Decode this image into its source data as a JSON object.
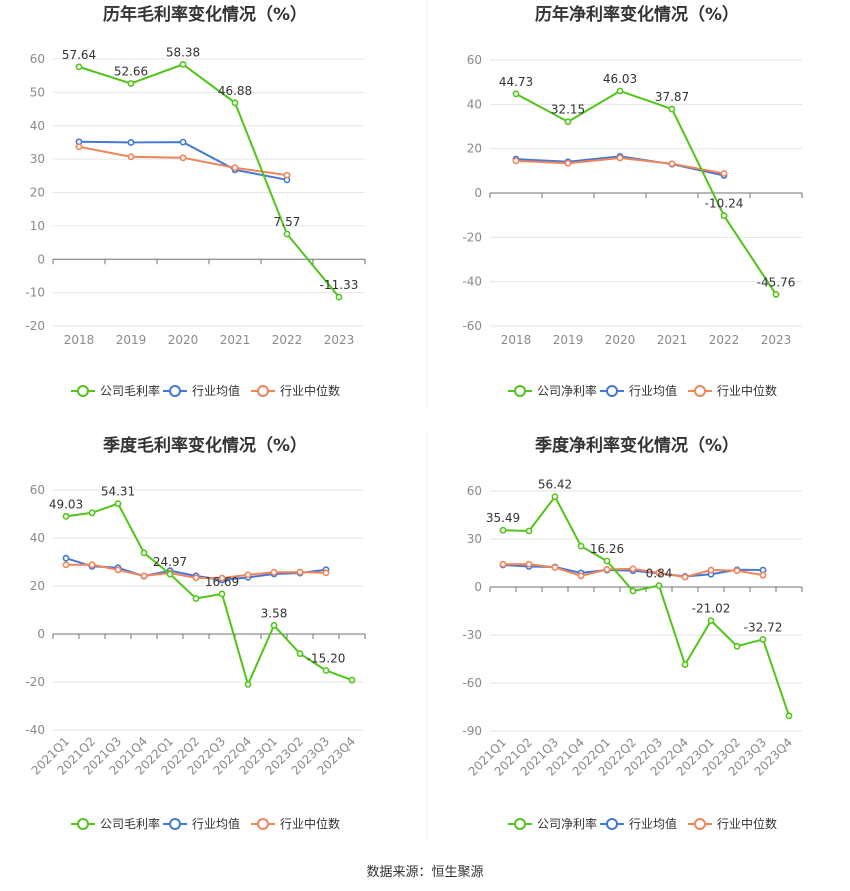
{
  "colors": {
    "company": "#52c41a",
    "industry_avg": "#4577d6",
    "industry_median": "#f0845a"
  },
  "source_text": "数据来源：恒生聚源",
  "chart_data": [
    {
      "type": "line",
      "title": "历年毛利率变化情况（%）",
      "categories": [
        "2018",
        "2019",
        "2020",
        "2021",
        "2022",
        "2023"
      ],
      "ylim": [
        -20,
        60
      ],
      "yticks": [
        60,
        50,
        40,
        30,
        20,
        10,
        0,
        -10,
        -20
      ],
      "grid": true,
      "legend_position": "bottom",
      "series": [
        {
          "name": "公司毛利率",
          "values": [
            57.64,
            52.66,
            58.38,
            46.88,
            7.57,
            -11.33
          ],
          "labels": [
            "57.64",
            "52.66",
            "58.38",
            "46.88",
            "7.57",
            "-11.33"
          ]
        },
        {
          "name": "行业均值",
          "values": [
            35.2,
            35.0,
            35.1,
            26.8,
            23.8,
            null
          ]
        },
        {
          "name": "行业中位数",
          "values": [
            33.7,
            30.7,
            30.4,
            27.4,
            25.2,
            null
          ]
        }
      ]
    },
    {
      "type": "line",
      "title": "历年净利率变化情况（%）",
      "categories": [
        "2018",
        "2019",
        "2020",
        "2021",
        "2022",
        "2023"
      ],
      "ylim": [
        -60,
        60
      ],
      "yticks": [
        60,
        40,
        20,
        0,
        -20,
        -40,
        -60
      ],
      "grid": true,
      "legend_position": "bottom",
      "series": [
        {
          "name": "公司净利率",
          "values": [
            44.73,
            32.15,
            46.03,
            37.87,
            -10.24,
            -45.76
          ],
          "labels": [
            "44.73",
            "32.15",
            "46.03",
            "37.87",
            "-10.24",
            "-45.76"
          ]
        },
        {
          "name": "行业均值",
          "values": [
            15.3,
            14.1,
            16.5,
            13.0,
            7.9,
            null
          ]
        },
        {
          "name": "行业中位数",
          "values": [
            14.5,
            13.4,
            15.8,
            13.2,
            8.8,
            null
          ]
        }
      ]
    },
    {
      "type": "line",
      "title": "季度毛利率变化情况（%）",
      "categories": [
        "2021Q1",
        "2021Q2",
        "2021Q3",
        "2021Q4",
        "2022Q1",
        "2022Q2",
        "2022Q3",
        "2022Q4",
        "2023Q1",
        "2023Q2",
        "2023Q3",
        "2023Q4"
      ],
      "ylim": [
        -40,
        60
      ],
      "yticks": [
        60,
        40,
        20,
        0,
        -20,
        -40
      ],
      "grid": true,
      "legend_position": "bottom",
      "series": [
        {
          "name": "公司毛利率",
          "values": [
            49.03,
            50.5,
            54.31,
            33.8,
            24.97,
            14.8,
            16.69,
            -21.0,
            3.58,
            -8.2,
            -15.2,
            -19.2
          ],
          "labels": [
            "49.03",
            "",
            "54.31",
            "",
            "24.97",
            "",
            "16.69",
            "",
            "3.58",
            "",
            "-15.20",
            ""
          ]
        },
        {
          "name": "行业均值",
          "values": [
            31.6,
            28.2,
            27.6,
            24.1,
            26.4,
            24.2,
            22.5,
            23.6,
            25.0,
            25.4,
            26.8,
            null
          ]
        },
        {
          "name": "行业中位数",
          "values": [
            28.8,
            28.9,
            26.7,
            24.2,
            25.4,
            23.4,
            23.3,
            24.7,
            25.7,
            25.8,
            25.5,
            null
          ]
        }
      ]
    },
    {
      "type": "line",
      "title": "季度净利率变化情况（%）",
      "categories": [
        "2021Q1",
        "2021Q2",
        "2021Q3",
        "2021Q4",
        "2022Q1",
        "2022Q2",
        "2022Q3",
        "2022Q4",
        "2023Q1",
        "2023Q2",
        "2023Q3",
        "2023Q4"
      ],
      "ylim": [
        -90,
        60
      ],
      "yticks": [
        60,
        30,
        0,
        -30,
        -60,
        -90
      ],
      "grid": true,
      "legend_position": "bottom",
      "series": [
        {
          "name": "公司净利率",
          "values": [
            35.49,
            35.0,
            56.42,
            25.5,
            16.26,
            -2.5,
            0.84,
            -48.5,
            -21.02,
            -37.0,
            -32.72,
            -80.5
          ],
          "labels": [
            "35.49",
            "",
            "56.42",
            "",
            "16.26",
            "",
            "0.84",
            "",
            "-21.02",
            "",
            "-32.72",
            ""
          ]
        },
        {
          "name": "行业均值",
          "values": [
            13.8,
            12.8,
            12.5,
            8.8,
            10.6,
            10.2,
            8.6,
            6.6,
            8.0,
            10.8,
            10.6,
            null
          ]
        },
        {
          "name": "行业中位数",
          "values": [
            14.2,
            14.3,
            12.2,
            7.0,
            11.0,
            11.3,
            8.8,
            6.2,
            10.6,
            10.2,
            7.4,
            null
          ]
        }
      ]
    }
  ]
}
